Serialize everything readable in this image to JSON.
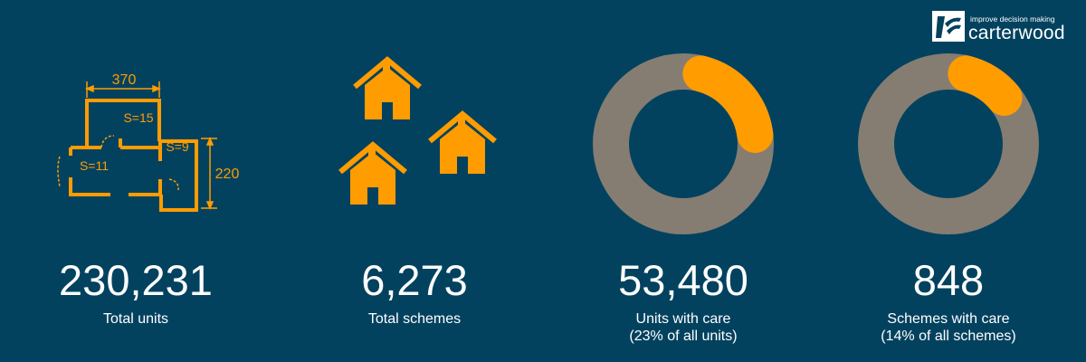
{
  "colors": {
    "background": "#03425f",
    "accent": "#ff9c00",
    "ring_gray": "#857d71",
    "text": "#ffffff"
  },
  "logo": {
    "tagline": "improve decision making",
    "name": "carterwood",
    "icon": "carterwood-logo-icon"
  },
  "floorplan": {
    "icon": "floorplan-icon",
    "width_label": "370",
    "height_label": "220",
    "rooms": [
      "S=15",
      "S=9",
      "S=11"
    ]
  },
  "houses": {
    "icon": "houses-icon"
  },
  "stats": [
    {
      "value": "230,231",
      "label": "Total units",
      "label2": ""
    },
    {
      "value": "6,273",
      "label": "Total schemes",
      "label2": ""
    },
    {
      "value": "53,480",
      "label": "Units with care",
      "label2": "(23% of all units)",
      "percent": 23
    },
    {
      "value": "848",
      "label": "Schemes with care",
      "label2": "(14% of all schemes)",
      "percent": 14
    }
  ]
}
